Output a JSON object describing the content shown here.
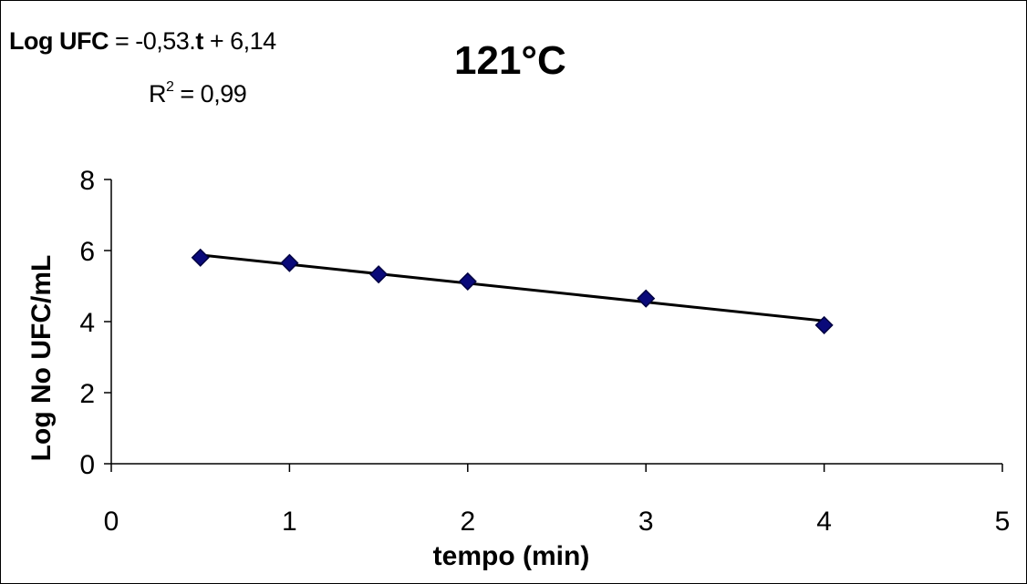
{
  "equation": {
    "lhs": "Log UFC",
    "eq_prefix": " = -0,53.",
    "var": "t",
    "eq_suffix": " + 6,14",
    "r_base": "R",
    "r_sup": "2",
    "r_value": " = 0,99"
  },
  "chart_data": {
    "type": "scatter",
    "title": "121°C",
    "xlabel": "tempo (min)",
    "ylabel": "Log No UFC/mL",
    "xlim": [
      0,
      5
    ],
    "ylim": [
      0,
      8
    ],
    "xticks": [
      "0",
      "1",
      "2",
      "3",
      "4",
      "5"
    ],
    "yticks": [
      "0",
      "2",
      "4",
      "6",
      "8"
    ],
    "grid": false,
    "series": [
      {
        "x": [
          0.5,
          1,
          1.5,
          2,
          3,
          4
        ],
        "y": [
          5.8,
          5.65,
          5.33,
          5.13,
          4.65,
          3.9
        ]
      }
    ],
    "trendline": {
      "slope": -0.53,
      "intercept": 6.14,
      "x_range": [
        0.5,
        4
      ]
    },
    "colors": {
      "marker": "#0a0a7a",
      "marker_outline": "#000040",
      "trendline": "#000000",
      "axis": "#000000"
    }
  }
}
